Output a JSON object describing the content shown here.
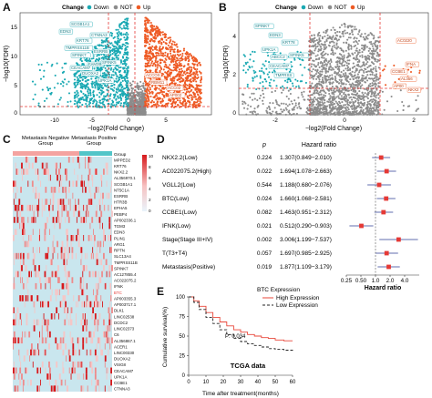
{
  "panels": {
    "a": "A",
    "b": "B",
    "c": "C",
    "d": "D",
    "e": "E"
  },
  "volcano_a": {
    "legend_title": "Change",
    "legend_items": [
      {
        "label": "Down",
        "color": "#1aa9b3"
      },
      {
        "label": "NOT",
        "color": "#8c8c8c"
      },
      {
        "label": "Up",
        "color": "#ee5a24"
      }
    ],
    "xlabel": "−log2(Fold Change)",
    "ylabel": "−log10(FDR)",
    "x_ticks": [
      "-10",
      "-5",
      "0",
      "5"
    ],
    "y_ticks": [
      "0",
      "5",
      "10",
      "15"
    ],
    "genes_down": [
      "EDN3",
      "SCGB1A1",
      "TMPRSS11B",
      "SPINK7",
      "DUOXA2",
      "KRT76",
      "CTNNA3",
      "ESRRB",
      "FAM3B",
      "UPK1A",
      "SPINK5",
      "CEACAM7"
    ],
    "genes_up": [
      "ACCOX",
      "RBM11",
      "ACC02",
      "AP002"
    ]
  },
  "volcano_b": {
    "xlabel": "−log2(Fold Change)",
    "ylabel": "−log10(FDR)",
    "x_ticks": [
      "-2",
      "0",
      "2"
    ],
    "y_ticks": [
      "0",
      "2",
      "4"
    ],
    "genes_down": [
      "SPINK7",
      "EDN3",
      "UPK1A",
      "ABCC2",
      "CEACAM7",
      "TMPRSS",
      "SPINK5",
      "KRT78"
    ],
    "genes_up": [
      "AC0220",
      "IFNA",
      "CCBE1",
      "AL356",
      "AP00",
      "NKX2"
    ]
  },
  "heatmap": {
    "group_label": "Group",
    "groups": [
      "Metastasis Negative Group",
      "Metastasis Positive Group"
    ],
    "group_colors": [
      "#f4a3a0",
      "#52c5c8"
    ],
    "scale_ticks": [
      "10",
      "8",
      "6",
      "4",
      "2",
      "0"
    ],
    "genes": [
      "MPPED2",
      "KRT76",
      "NKX2.2",
      "AL356970.1",
      "SCGB1A1",
      "NT5C1A",
      "ESRRB",
      "HTR3B",
      "EPHA5",
      "PEBP4",
      "AP002336.1",
      "TGM3",
      "EDN3",
      "PLIN1",
      "ARG1",
      "RPTN",
      "SLC13A4",
      "TMPRSS11B",
      "SPINK7",
      "AC127855.4",
      "AC022075.2",
      "IFNK",
      "BTC",
      "AP003355.3",
      "AP003717.1",
      "DLK1",
      "LINC02538",
      "DCDC2",
      "LINC02373",
      "C6",
      "AL356867.1",
      "ACER1",
      "LINC00330",
      "DUOXA2",
      "VSIG8",
      "CEACAM7",
      "UPK1A",
      "CCBE1",
      "CTNNA3"
    ],
    "highlight_gene": "BTC"
  },
  "forest": {
    "col_p": "p",
    "col_hr": "Hazard ratio",
    "xlabel": "Hazard ratio",
    "x_ticks": [
      "0.25",
      "0.50",
      "1.0",
      "2.0",
      "4.0"
    ],
    "rows": [
      {
        "label": "NKX2.2(Low)",
        "p": "0.224",
        "hr_text": "1.307(0.849−2.010)",
        "hr": 1.307,
        "lo": 0.849,
        "hi": 2.01
      },
      {
        "label": "AC022075.2(High)",
        "p": "0.022",
        "hr_text": "1.694(1.078−2.663)",
        "hr": 1.694,
        "lo": 1.078,
        "hi": 2.663
      },
      {
        "label": "VGLL2(Low)",
        "p": "0.544",
        "hr_text": "1.188(0.680−2.076)",
        "hr": 1.188,
        "lo": 0.68,
        "hi": 2.076
      },
      {
        "label": "BTC(Low)",
        "p": "0.024",
        "hr_text": "1.660(1.068−2.581)",
        "hr": 1.66,
        "lo": 1.068,
        "hi": 2.581
      },
      {
        "label": "CCBE1(Low)",
        "p": "0.082",
        "hr_text": "1.463(0.951−2.312)",
        "hr": 1.463,
        "lo": 0.951,
        "hi": 2.312
      },
      {
        "label": "IFNK(Low)",
        "p": "0.021",
        "hr_text": "0.512(0.290−0.903)",
        "hr": 0.512,
        "lo": 0.29,
        "hi": 0.903
      },
      {
        "label": "Stage(Stage III+IV)",
        "p": "0.002",
        "hr_text": "3.006(1.199−7.537)",
        "hr": 3.006,
        "lo": 1.199,
        "hi": 7.537
      },
      {
        "label": "T(T3+T4)",
        "p": "0.057",
        "hr_text": "1.697(0.985−2.925)",
        "hr": 1.697,
        "lo": 0.985,
        "hi": 2.925
      },
      {
        "label": "Metastasis(Positive)",
        "p": "0.019",
        "hr_text": "1.877(1.109−3.179)",
        "hr": 1.877,
        "lo": 1.109,
        "hi": 3.179
      }
    ]
  },
  "survival": {
    "legend_title": "BTC Expression",
    "legend_items": [
      {
        "label": "High Expression",
        "color": "#e8473a"
      },
      {
        "label": "Low Expression",
        "color": "#222222"
      }
    ],
    "pvalue": "P: 0.034",
    "dataset": "TCGA data",
    "xlabel": "Time after treatment(months)",
    "ylabel": "Cumulative survival(%)",
    "x_ticks": [
      "0",
      "10",
      "20",
      "30",
      "40",
      "50",
      "60"
    ],
    "y_ticks": [
      "0",
      "25",
      "50",
      "75",
      "100"
    ]
  },
  "chart_data": [
    {
      "type": "scatter",
      "title": "",
      "xlabel": "−log2(Fold Change)",
      "ylabel": "−log10(FDR)",
      "xlim": [
        -14,
        9
      ],
      "ylim": [
        0,
        18
      ],
      "thresholds": {
        "x": [
          -1,
          1
        ],
        "y": 1.3
      }
    },
    {
      "type": "scatter",
      "title": "",
      "xlabel": "−log2(Fold Change)",
      "ylabel": "−log10(FDR)",
      "xlim": [
        -3,
        2.4
      ],
      "ylim": [
        0,
        5
      ],
      "thresholds": {
        "x": [
          -1,
          1
        ],
        "y": 1.3
      }
    },
    {
      "type": "heatmap",
      "rows": 39,
      "groups": [
        "Metastasis Negative Group",
        "Metastasis Positive Group"
      ]
    },
    {
      "type": "scatter",
      "xlabel": "Hazard ratio",
      "xscale": "log",
      "xlim": [
        0.25,
        8
      ],
      "reference": 1
    },
    {
      "type": "line",
      "xlabel": "Time after treatment(months)",
      "ylabel": "Cumulative survival(%)",
      "xlim": [
        0,
        60
      ],
      "ylim": [
        0,
        100
      ],
      "series": [
        {
          "name": "High Expression",
          "x": [
            0,
            3,
            6,
            10,
            14,
            18,
            22,
            26,
            30,
            34,
            38,
            42,
            46,
            50,
            55,
            60
          ],
          "values": [
            100,
            95,
            88,
            80,
            74,
            68,
            63,
            58,
            55,
            52,
            50,
            48,
            47,
            45,
            44,
            44
          ]
        },
        {
          "name": "Low Expression",
          "x": [
            0,
            3,
            6,
            10,
            14,
            18,
            22,
            26,
            30,
            34,
            38,
            42,
            46,
            50,
            55,
            60
          ],
          "values": [
            100,
            93,
            84,
            74,
            66,
            58,
            52,
            47,
            43,
            40,
            38,
            36,
            34,
            33,
            32,
            31
          ]
        }
      ]
    }
  ]
}
